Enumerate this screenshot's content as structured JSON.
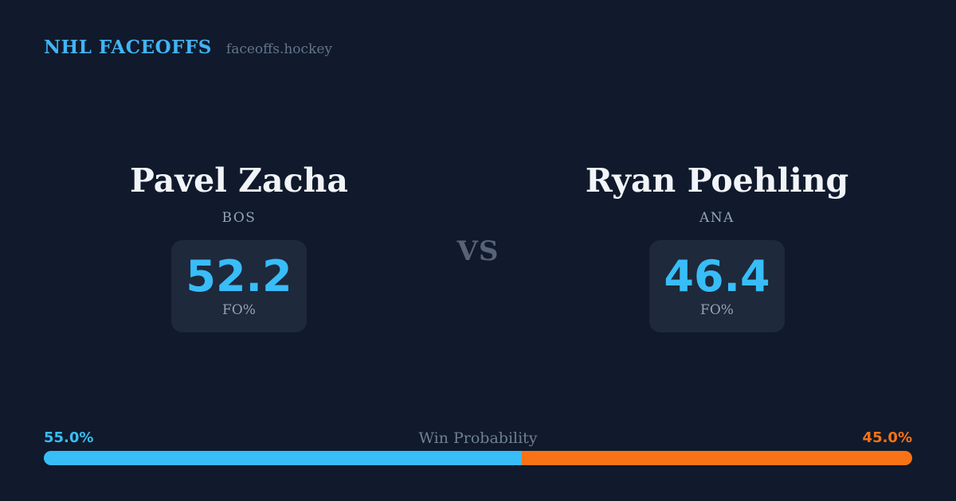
{
  "header": {
    "brand": "NHL FACEOFFS",
    "site": "faceoffs.hockey"
  },
  "matchup": {
    "vs_label": "VS",
    "left": {
      "name": "Pavel Zacha",
      "team": "BOS",
      "stat_value": "52.2",
      "stat_label": "FO%"
    },
    "right": {
      "name": "Ryan Poehling",
      "team": "ANA",
      "stat_value": "46.4",
      "stat_label": "FO%"
    }
  },
  "win_probability": {
    "title": "Win Probability",
    "left_pct_label": "55.0%",
    "right_pct_label": "45.0%",
    "left_value": 55.0,
    "right_value": 45.0,
    "left_color": "#38bdf8",
    "right_color": "#f97316"
  },
  "colors": {
    "background": "#101a2c",
    "panel": "#1e293b",
    "accent_blue": "#38bdf8",
    "accent_orange": "#f97316",
    "text_primary": "#f1f5f9",
    "text_muted": "#94a3b8",
    "text_faint": "#64748b"
  },
  "chart_data": {
    "type": "bar",
    "subtype": "horizontal-stacked-single-row",
    "title": "Win Probability",
    "categories": [
      "Pavel Zacha (BOS)",
      "Ryan Poehling (ANA)"
    ],
    "series": [
      {
        "name": "Win Probability %",
        "values": [
          55.0,
          45.0
        ]
      },
      {
        "name": "FO%",
        "values": [
          52.2,
          46.4
        ]
      }
    ],
    "colors": [
      "#38bdf8",
      "#f97316"
    ],
    "xlim": [
      0,
      100
    ],
    "grid": false,
    "legend": false
  }
}
